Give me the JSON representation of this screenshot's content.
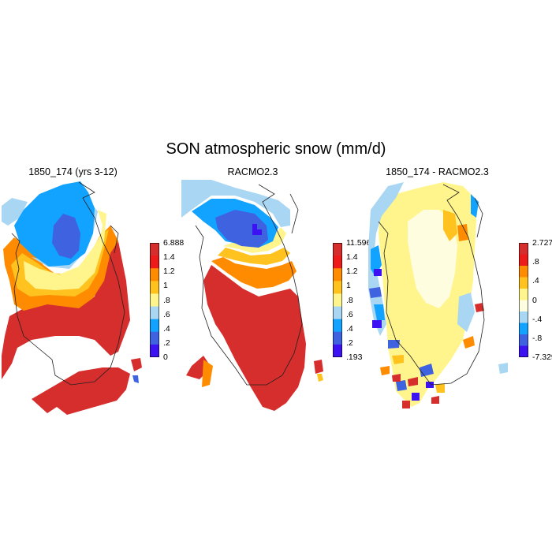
{
  "title": "SON atmospheric snow (mm/d)",
  "panels": [
    {
      "id": "model",
      "title": "1850_174 (yrs 3-12)",
      "colorbar_labels": [
        "6.888",
        "1.4",
        "1.2",
        "1",
        ".8",
        ".6",
        ".4",
        ".2",
        "0"
      ],
      "colorbar_colors": [
        "#d62d2d",
        "#ee1b1b",
        "#ff8c00",
        "#ffc21e",
        "#fff58c",
        "#a9d6f2",
        "#12a2ff",
        "#3e62e0",
        "#3c12f2"
      ]
    },
    {
      "id": "obs",
      "title": "RACMO2.3",
      "colorbar_labels": [
        "11.596",
        "1.4",
        "1.2",
        "1",
        ".8",
        ".6",
        ".4",
        ".2",
        ".193"
      ],
      "colorbar_colors": [
        "#d62d2d",
        "#ee1b1b",
        "#ff8c00",
        "#ffc21e",
        "#fff58c",
        "#a9d6f2",
        "#12a2ff",
        "#3e62e0",
        "#3c12f2"
      ]
    },
    {
      "id": "diff",
      "title": "1850_174 - RACMO2.3",
      "colorbar_labels": [
        "2.727",
        ".8",
        ".4",
        "0",
        "-.4",
        "-.8",
        "-7.329"
      ],
      "colorbar_colors": [
        "#d62d2d",
        "#ee1b1b",
        "#ff8c00",
        "#ffc21e",
        "#fff58c",
        "#fffde0",
        "#a9d6f2",
        "#12a2ff",
        "#3e62e0",
        "#3c12f2"
      ]
    }
  ]
}
